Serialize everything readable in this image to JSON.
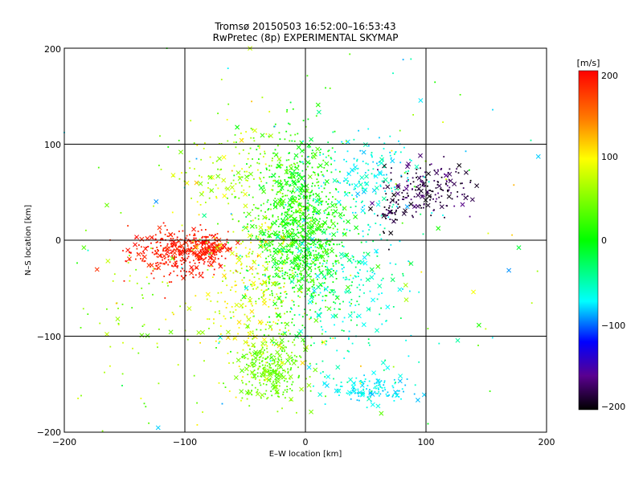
{
  "chart_data": {
    "type": "scatter",
    "title": "Tromsø 20150503 16:52:00–16:53:43",
    "subtitle": "RwPretec (8p) EXPERIMENTAL SKYMAP",
    "xlabel": "E–W location [km]",
    "ylabel": "N–S location [km]",
    "xlim": [
      -200,
      200
    ],
    "ylim": [
      -200,
      200
    ],
    "x_ticks": [
      "−200",
      "−100",
      "0",
      "100",
      "200"
    ],
    "y_ticks": [
      "−200",
      "−100",
      "0",
      "100",
      "200"
    ],
    "grid": true,
    "grid_lines_at": [
      -100,
      0,
      100
    ],
    "colorbar": {
      "label": "[m/s]",
      "range": [
        -200,
        200
      ],
      "ticks": [
        "200",
        "100",
        "0",
        "−100",
        "−200"
      ],
      "colormap": "rainbow (black→purple→blue→cyan→green→yellow→red)"
    },
    "markers": [
      "dot",
      "cross"
    ],
    "clusters": [
      {
        "cx": -105,
        "cy": -12,
        "sx": 20,
        "sy": 12,
        "n": 380,
        "vmin": 175,
        "vmax": 200
      },
      {
        "cx": -78,
        "cy": -8,
        "sx": 8,
        "sy": 6,
        "n": 90,
        "vmin": 165,
        "vmax": 200
      },
      {
        "cx": 100,
        "cy": 55,
        "sx": 18,
        "sy": 14,
        "n": 180,
        "vmin": -200,
        "vmax": -160
      },
      {
        "cx": 72,
        "cy": 28,
        "sx": 6,
        "sy": 12,
        "n": 40,
        "vmin": -200,
        "vmax": -165
      },
      {
        "cx": -5,
        "cy": 10,
        "sx": 18,
        "sy": 45,
        "n": 1100,
        "vmin": -15,
        "vmax": 35
      },
      {
        "cx": -28,
        "cy": -135,
        "sx": 14,
        "sy": 16,
        "n": 300,
        "vmin": 20,
        "vmax": 55
      },
      {
        "cx": 55,
        "cy": -155,
        "sx": 16,
        "sy": 8,
        "n": 140,
        "vmin": -70,
        "vmax": -40
      },
      {
        "cx": -45,
        "cy": -55,
        "sx": 20,
        "sy": 40,
        "n": 280,
        "vmin": 50,
        "vmax": 110
      },
      {
        "cx": 35,
        "cy": -40,
        "sx": 25,
        "sy": 50,
        "n": 260,
        "vmin": -60,
        "vmax": -15
      },
      {
        "cx": 50,
        "cy": 70,
        "sx": 20,
        "sy": 22,
        "n": 140,
        "vmin": -70,
        "vmax": -30
      },
      {
        "cx": -140,
        "cy": -80,
        "sx": 28,
        "sy": 55,
        "n": 70,
        "vmin": 20,
        "vmax": 80
      },
      {
        "cx": -60,
        "cy": 70,
        "sx": 25,
        "sy": 25,
        "n": 140,
        "vmin": 30,
        "vmax": 90
      },
      {
        "cx": 0,
        "cy": 0,
        "sx": 110,
        "sy": 110,
        "n": 200,
        "vmin": -80,
        "vmax": 120
      }
    ]
  }
}
